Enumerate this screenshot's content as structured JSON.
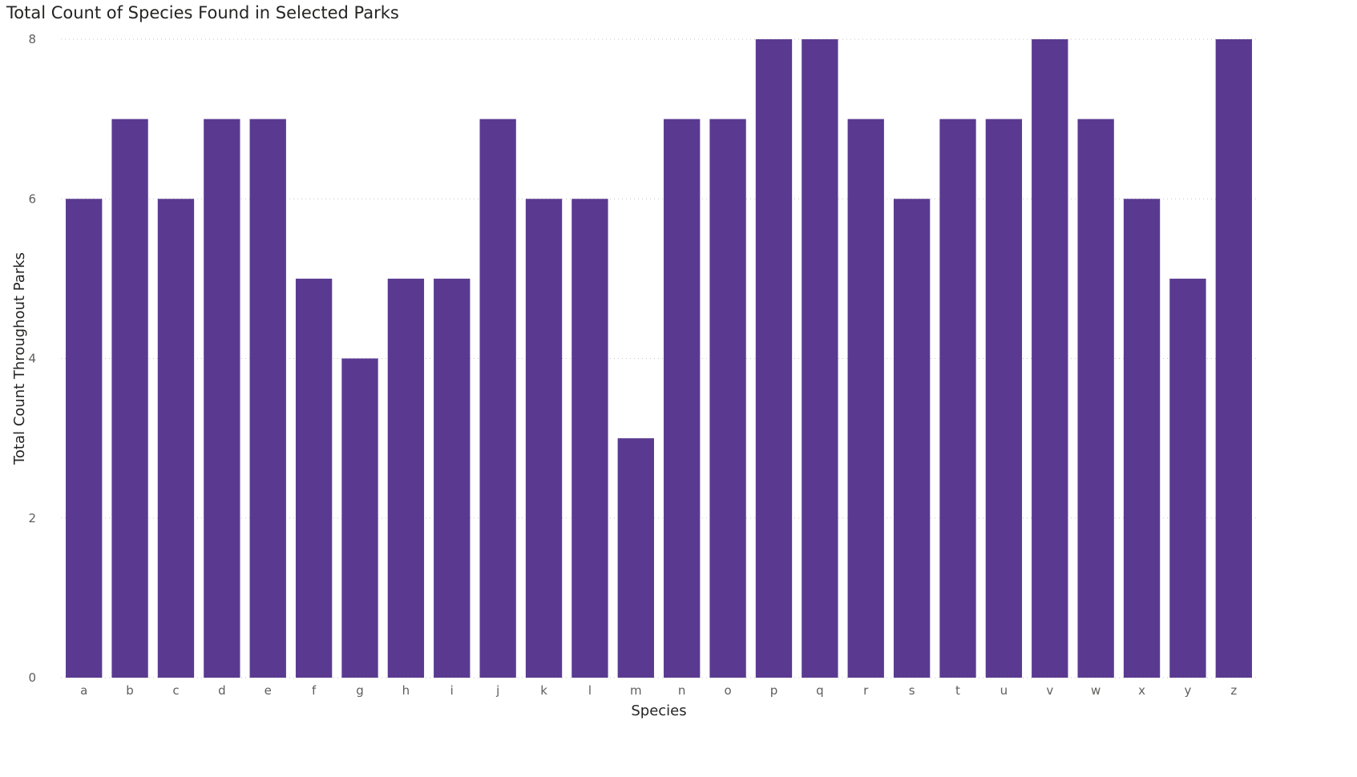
{
  "chart_data": {
    "type": "bar",
    "title": "Total Count of Species Found in Selected Parks",
    "xlabel": "Species",
    "ylabel": "Total Count Throughout Parks",
    "categories": [
      "a",
      "b",
      "c",
      "d",
      "e",
      "f",
      "g",
      "h",
      "i",
      "j",
      "k",
      "l",
      "m",
      "n",
      "o",
      "p",
      "q",
      "r",
      "s",
      "t",
      "u",
      "v",
      "w",
      "x",
      "y",
      "z"
    ],
    "values": [
      6,
      7,
      6,
      7,
      7,
      5,
      4,
      5,
      5,
      7,
      6,
      6,
      3,
      7,
      7,
      8,
      8,
      7,
      6,
      7,
      7,
      8,
      7,
      6,
      5,
      8
    ],
    "ylim": [
      0,
      8
    ],
    "yticks": [
      0,
      2,
      4,
      6,
      8
    ],
    "grid": true,
    "bar_color": "#5A3A91"
  }
}
